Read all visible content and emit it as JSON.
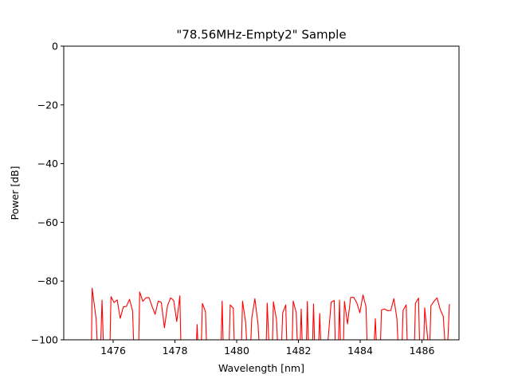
{
  "chart_data": {
    "type": "line",
    "title": "\"78.56MHz-Empty2\" Sample",
    "xlabel": "Wavelength [nm]",
    "ylabel": "Power [dB]",
    "xlim": [
      1474.4,
      1487.2
    ],
    "ylim": [
      -100,
      0
    ],
    "xticks": [
      1476,
      1478,
      1480,
      1482,
      1484,
      1486
    ],
    "yticks": [
      0,
      -20,
      -40,
      -60,
      -80,
      -100
    ],
    "xtick_labels": [
      "1476",
      "1478",
      "1480",
      "1482",
      "1484",
      "1486"
    ],
    "ytick_labels": [
      "0",
      "−20",
      "−40",
      "−60",
      "−80",
      "−100"
    ],
    "grid": false,
    "series": [
      {
        "color": "#ff0000",
        "points": [
          [
            1475.3,
            -100
          ],
          [
            1475.32,
            -82.4
          ],
          [
            1475.45,
            -93
          ],
          [
            1475.48,
            -100
          ],
          [
            1475.6,
            -100
          ],
          [
            1475.64,
            -86.5
          ],
          [
            1475.68,
            -100
          ],
          [
            1475.9,
            -100
          ],
          [
            1475.93,
            -85.3
          ],
          [
            1476.03,
            -87.3
          ],
          [
            1476.13,
            -86.4
          ],
          [
            1476.23,
            -92.7
          ],
          [
            1476.33,
            -88.8
          ],
          [
            1476.43,
            -88.6
          ],
          [
            1476.53,
            -86.2
          ],
          [
            1476.63,
            -90.2
          ],
          [
            1476.66,
            -100
          ],
          [
            1476.83,
            -100
          ],
          [
            1476.86,
            -83.7
          ],
          [
            1476.96,
            -86.9
          ],
          [
            1477.06,
            -85.7
          ],
          [
            1477.16,
            -85.6
          ],
          [
            1477.26,
            -88.6
          ],
          [
            1477.36,
            -91.3
          ],
          [
            1477.46,
            -86.8
          ],
          [
            1477.56,
            -87.3
          ],
          [
            1477.66,
            -95.9
          ],
          [
            1477.76,
            -88.4
          ],
          [
            1477.86,
            -85.7
          ],
          [
            1477.96,
            -86.6
          ],
          [
            1478.06,
            -93.8
          ],
          [
            1478.16,
            -85
          ],
          [
            1478.19,
            -100
          ],
          [
            1478.7,
            -100
          ],
          [
            1478.72,
            -94.8
          ],
          [
            1478.74,
            -100
          ],
          [
            1478.86,
            -100
          ],
          [
            1478.89,
            -87.6
          ],
          [
            1478.99,
            -90.4
          ],
          [
            1479.02,
            -100
          ],
          [
            1479.5,
            -100
          ],
          [
            1479.53,
            -86.8
          ],
          [
            1479.56,
            -100
          ],
          [
            1479.76,
            -100
          ],
          [
            1479.79,
            -88.1
          ],
          [
            1479.89,
            -89.2
          ],
          [
            1479.92,
            -100
          ],
          [
            1480.16,
            -100
          ],
          [
            1480.19,
            -86.8
          ],
          [
            1480.29,
            -94
          ],
          [
            1480.32,
            -100
          ],
          [
            1480.46,
            -100
          ],
          [
            1480.49,
            -92.5
          ],
          [
            1480.59,
            -86
          ],
          [
            1480.69,
            -94.5
          ],
          [
            1480.72,
            -100
          ],
          [
            1480.96,
            -100
          ],
          [
            1480.99,
            -87.5
          ],
          [
            1481.04,
            -100
          ],
          [
            1481.16,
            -100
          ],
          [
            1481.19,
            -87
          ],
          [
            1481.29,
            -93.2
          ],
          [
            1481.32,
            -100
          ],
          [
            1481.46,
            -100
          ],
          [
            1481.49,
            -90.9
          ],
          [
            1481.59,
            -88.1
          ],
          [
            1481.62,
            -100
          ],
          [
            1481.8,
            -100
          ],
          [
            1481.83,
            -86.8
          ],
          [
            1481.93,
            -90.8
          ],
          [
            1481.96,
            -100
          ],
          [
            1482.06,
            -100
          ],
          [
            1482.09,
            -89.5
          ],
          [
            1482.12,
            -100
          ],
          [
            1482.26,
            -100
          ],
          [
            1482.29,
            -86.9
          ],
          [
            1482.32,
            -100
          ],
          [
            1482.46,
            -100
          ],
          [
            1482.49,
            -87.8
          ],
          [
            1482.52,
            -100
          ],
          [
            1482.66,
            -100
          ],
          [
            1482.69,
            -91
          ],
          [
            1482.72,
            -100
          ],
          [
            1482.96,
            -100
          ],
          [
            1483.06,
            -87.2
          ],
          [
            1483.16,
            -86.6
          ],
          [
            1483.19,
            -100
          ],
          [
            1483.3,
            -100
          ],
          [
            1483.33,
            -86.5
          ],
          [
            1483.36,
            -100
          ],
          [
            1483.46,
            -100
          ],
          [
            1483.49,
            -86.9
          ],
          [
            1483.59,
            -94.6
          ],
          [
            1483.69,
            -85.6
          ],
          [
            1483.79,
            -85.5
          ],
          [
            1483.89,
            -87.4
          ],
          [
            1483.99,
            -90.8
          ],
          [
            1484.09,
            -84.7
          ],
          [
            1484.19,
            -88.8
          ],
          [
            1484.22,
            -100
          ],
          [
            1484.46,
            -100
          ],
          [
            1484.49,
            -92.8
          ],
          [
            1484.52,
            -100
          ],
          [
            1484.66,
            -100
          ],
          [
            1484.69,
            -89.8
          ],
          [
            1484.79,
            -89.5
          ],
          [
            1484.89,
            -90.1
          ],
          [
            1484.99,
            -90
          ],
          [
            1485.09,
            -86
          ],
          [
            1485.19,
            -92.8
          ],
          [
            1485.22,
            -100
          ],
          [
            1485.36,
            -100
          ],
          [
            1485.39,
            -89.9
          ],
          [
            1485.49,
            -88.1
          ],
          [
            1485.52,
            -100
          ],
          [
            1485.76,
            -100
          ],
          [
            1485.79,
            -87.5
          ],
          [
            1485.89,
            -85.8
          ],
          [
            1485.92,
            -100
          ],
          [
            1486.06,
            -100
          ],
          [
            1486.09,
            -89.1
          ],
          [
            1486.19,
            -100
          ],
          [
            1486.26,
            -100
          ],
          [
            1486.29,
            -88.4
          ],
          [
            1486.39,
            -86.9
          ],
          [
            1486.49,
            -85.7
          ],
          [
            1486.59,
            -89.6
          ],
          [
            1486.69,
            -92
          ],
          [
            1486.74,
            -100
          ],
          [
            1486.84,
            -100
          ],
          [
            1486.89,
            -87.8
          ]
        ]
      }
    ]
  }
}
